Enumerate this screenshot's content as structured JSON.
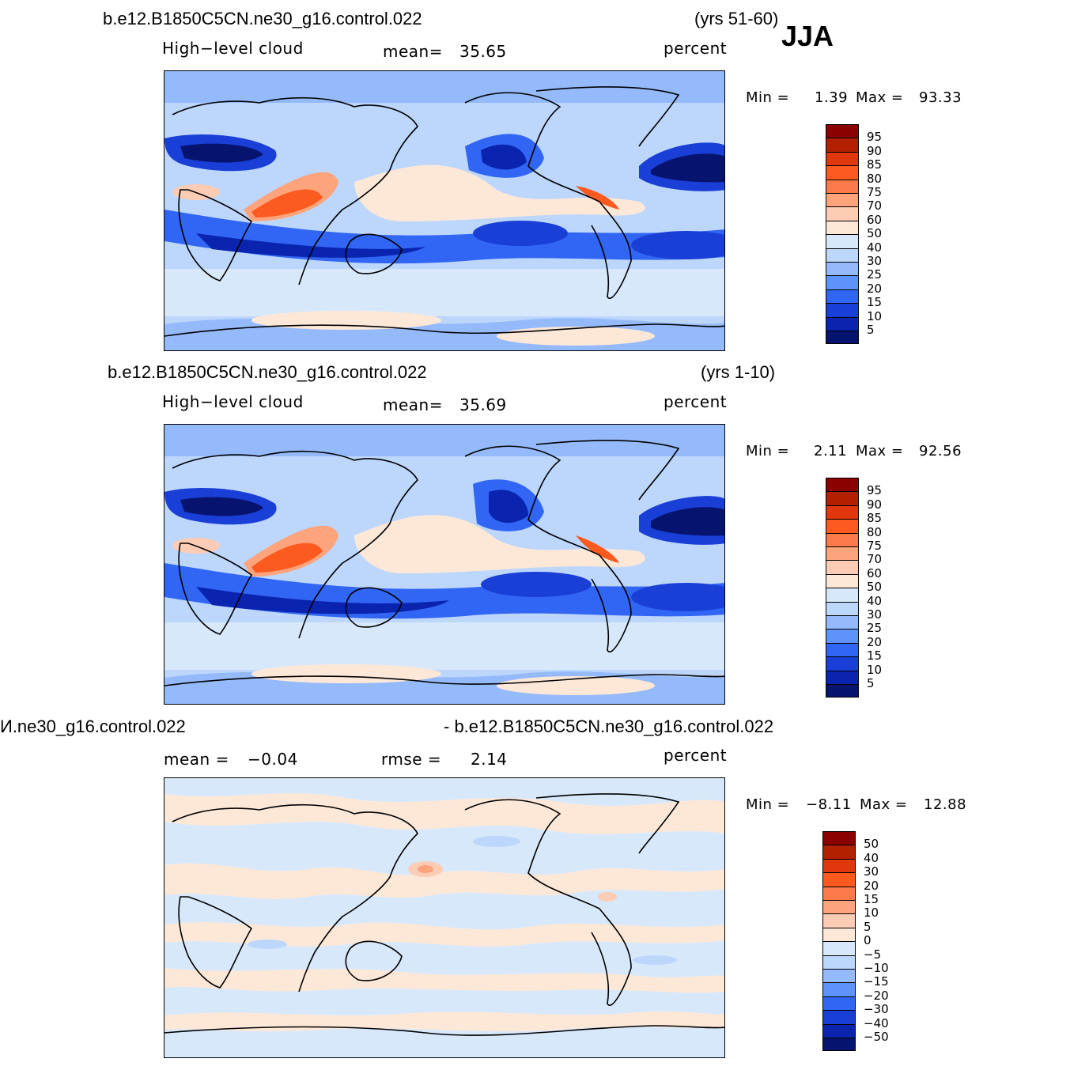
{
  "season": "JJA",
  "panels": [
    {
      "case": "b.e12.B1850C5CN.ne30_g16.control.022",
      "years": "(yrs 51-60)",
      "variable": "High−level cloud",
      "stat1_label": "mean=",
      "stat1_value": "35.65",
      "stat2_label": "",
      "stat2_value": "",
      "units": "percent",
      "min_label": "Min  =",
      "min_value": "1.39",
      "max_label": "Max  =",
      "max_value": "93.33",
      "colorbar": [
        "95",
        "90",
        "85",
        "80",
        "75",
        "70",
        "60",
        "50",
        "40",
        "30",
        "25",
        "20",
        "15",
        "10",
        "5"
      ]
    },
    {
      "case": "b.e12.B1850C5CN.ne30_g16.control.022",
      "years": "(yrs 1-10)",
      "variable": "High−level cloud",
      "stat1_label": "mean=",
      "stat1_value": "35.69",
      "stat2_label": "",
      "stat2_value": "",
      "units": "percent",
      "min_label": "Min  =",
      "min_value": "2.11",
      "max_label": "Max  =",
      "max_value": "92.56",
      "colorbar": [
        "95",
        "90",
        "85",
        "80",
        "75",
        "70",
        "60",
        "50",
        "40",
        "30",
        "25",
        "20",
        "15",
        "10",
        "5"
      ]
    },
    {
      "case": "И.ne30_g16.control.022",
      "years": "- b.e12.B1850C5CN.ne30_g16.control.022",
      "variable": "",
      "stat1_label": "mean  =",
      "stat1_value": "−0.04",
      "stat2_label": "rmse  =",
      "stat2_value": "2.14",
      "units": "percent",
      "min_label": "Min  =",
      "min_value": "−8.11",
      "max_label": "Max  =",
      "max_value": "12.88",
      "colorbar": [
        "50",
        "40",
        "30",
        "20",
        "15",
        "10",
        "5",
        "0",
        "−5",
        "−10",
        "−15",
        "−20",
        "−30",
        "−40",
        "−50"
      ]
    }
  ],
  "colors": {
    "levels": [
      "#8b0000",
      "#b22000",
      "#e0380c",
      "#fd5a20",
      "#fc7a4a",
      "#fda47c",
      "#fdccb4",
      "#fde8d8",
      "#d8e8fb",
      "#bcd6fc",
      "#95bafb",
      "#5f93fc",
      "#3166f4",
      "#1a3fd6",
      "#0a24b0",
      "#061470"
    ]
  }
}
